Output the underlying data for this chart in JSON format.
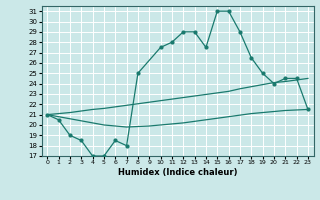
{
  "xlabel": "Humidex (Indice chaleur)",
  "bg_color": "#cbe8e8",
  "grid_color": "#ffffff",
  "line_color": "#1a7a6e",
  "xlim": [
    -0.5,
    23.5
  ],
  "ylim": [
    17,
    31.5
  ],
  "xticks": [
    0,
    1,
    2,
    3,
    4,
    5,
    6,
    7,
    8,
    9,
    10,
    11,
    12,
    13,
    14,
    15,
    16,
    17,
    18,
    19,
    20,
    21,
    22,
    23
  ],
  "yticks": [
    17,
    18,
    19,
    20,
    21,
    22,
    23,
    24,
    25,
    26,
    27,
    28,
    29,
    30,
    31
  ],
  "curve1_x": [
    0,
    1,
    2,
    3,
    4,
    5,
    6,
    7,
    8,
    10,
    11,
    12,
    13,
    14,
    15,
    16,
    17,
    18,
    19,
    20,
    21,
    22,
    23
  ],
  "curve1_y": [
    21.0,
    20.5,
    19.0,
    18.5,
    17.0,
    17.0,
    18.5,
    18.0,
    25.0,
    27.5,
    28.0,
    29.0,
    29.0,
    27.5,
    31.0,
    31.0,
    29.0,
    26.5,
    25.0,
    24.0,
    24.5,
    24.5,
    21.5
  ],
  "curve2_x": [
    0,
    1,
    2,
    3,
    4,
    5,
    6,
    7,
    8,
    9,
    10,
    11,
    12,
    13,
    14,
    15,
    16,
    17,
    18,
    19,
    20,
    21,
    22,
    23
  ],
  "curve2_y": [
    21.0,
    21.1,
    21.2,
    21.35,
    21.5,
    21.6,
    21.75,
    21.9,
    22.05,
    22.2,
    22.35,
    22.5,
    22.65,
    22.8,
    22.95,
    23.1,
    23.25,
    23.5,
    23.7,
    23.9,
    24.1,
    24.2,
    24.35,
    24.5
  ],
  "curve3_x": [
    0,
    1,
    2,
    3,
    4,
    5,
    6,
    7,
    8,
    9,
    10,
    11,
    12,
    13,
    14,
    15,
    16,
    17,
    18,
    19,
    20,
    21,
    22,
    23
  ],
  "curve3_y": [
    21.0,
    20.8,
    20.6,
    20.4,
    20.2,
    20.0,
    19.9,
    19.8,
    19.85,
    19.9,
    20.0,
    20.1,
    20.2,
    20.35,
    20.5,
    20.65,
    20.8,
    20.95,
    21.1,
    21.2,
    21.3,
    21.4,
    21.45,
    21.5
  ]
}
